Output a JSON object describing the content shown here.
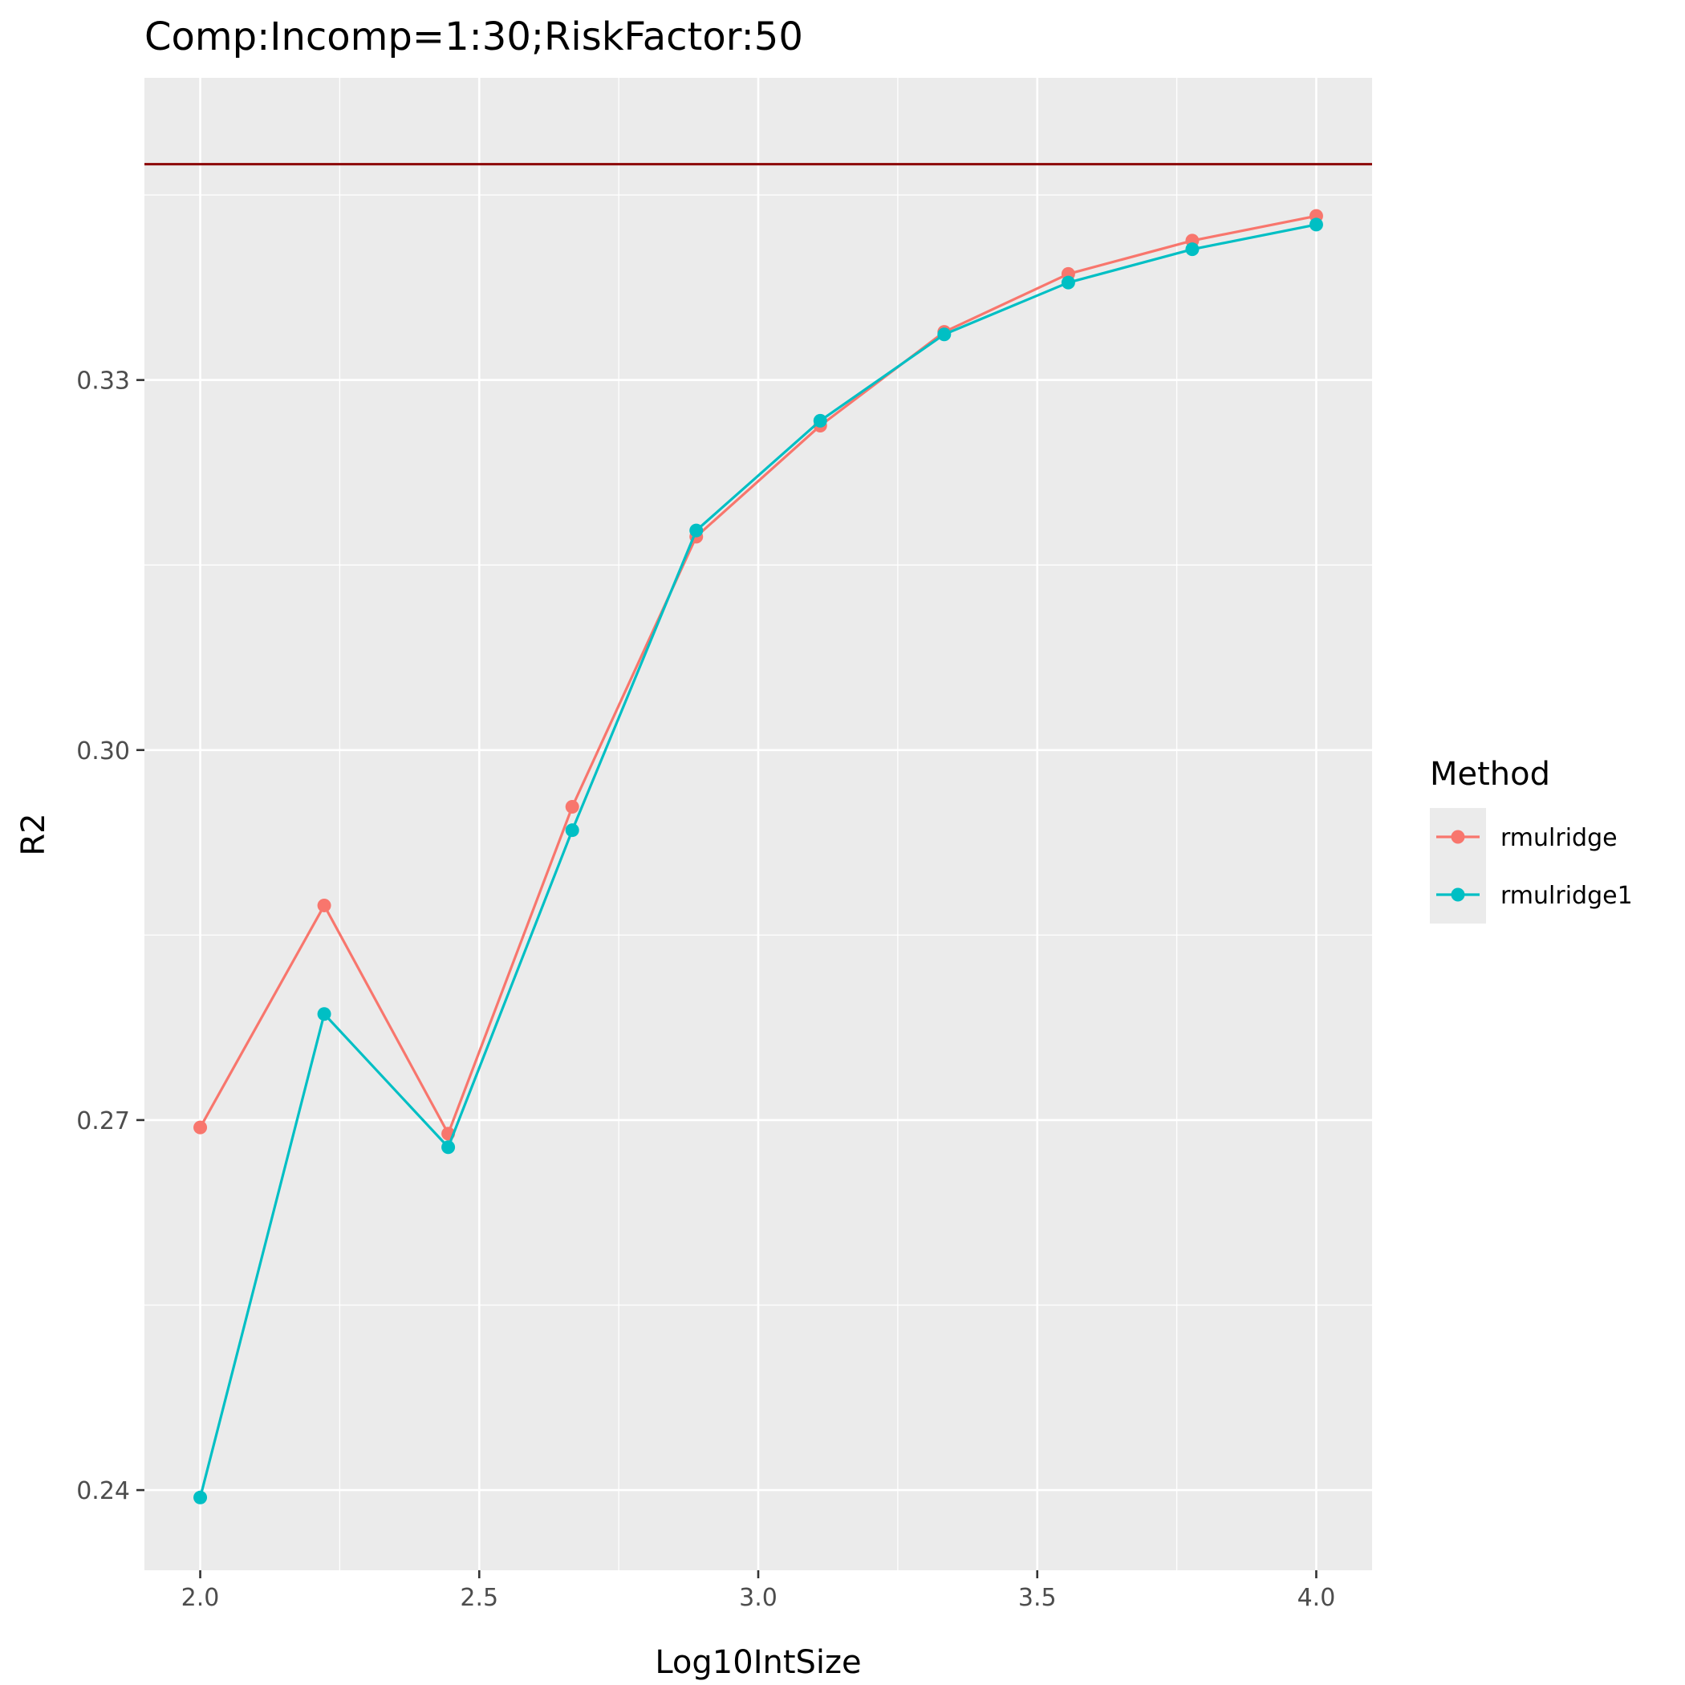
{
  "chart_data": {
    "type": "line",
    "title": "Comp:Incomp=1:30;RiskFactor:50",
    "xlabel": "Log10IntSize",
    "ylabel": "R2",
    "xlim": [
      1.9,
      4.1
    ],
    "ylim": [
      0.2335,
      0.3545
    ],
    "x_ticks": [
      2.0,
      2.5,
      3.0,
      3.5,
      4.0
    ],
    "x_tick_labels": [
      "2.0",
      "2.5",
      "3.0",
      "3.5",
      "4.0"
    ],
    "y_ticks": [
      0.24,
      0.27,
      0.3,
      0.33
    ],
    "y_tick_labels": [
      "0.24",
      "0.27",
      "0.30",
      "0.33"
    ],
    "grid": true,
    "legend": {
      "title": "Method",
      "position": "right"
    },
    "x": [
      2.0,
      2.2222,
      2.4444,
      2.6667,
      2.8889,
      3.1111,
      3.3333,
      3.5556,
      3.7778,
      4.0
    ],
    "series": [
      {
        "name": "rmulridge",
        "color": "#F8766D",
        "values": [
          0.2694,
          0.2874,
          0.2689,
          0.2954,
          0.3173,
          0.3263,
          0.3339,
          0.3386,
          0.3413,
          0.3433
        ]
      },
      {
        "name": "rmulridge1",
        "color": "#00BFC4",
        "values": [
          0.2394,
          0.2786,
          0.2678,
          0.2935,
          0.3178,
          0.3267,
          0.3337,
          0.3379,
          0.3406,
          0.3426
        ]
      }
    ],
    "reference_line": {
      "y": 0.3475,
      "color": "#8B0000"
    }
  }
}
